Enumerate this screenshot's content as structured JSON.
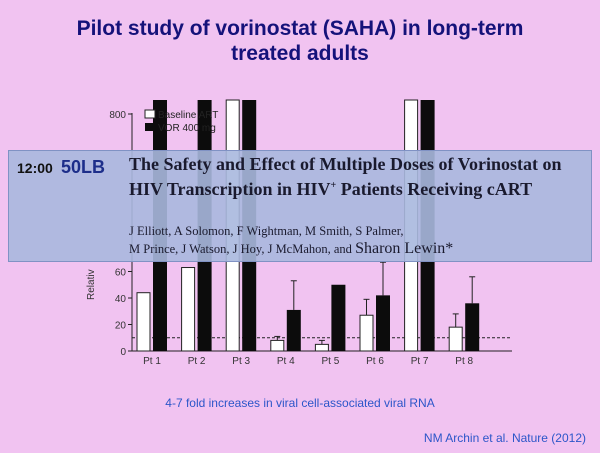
{
  "slide": {
    "title_line1": "Pilot study of vorinostat (SAHA) in long-term",
    "title_line2": "treated adults",
    "caption": "4-7 fold increases in viral cell-associated viral RNA",
    "citation": "NM Archin et al. Nature (2012)"
  },
  "banner": {
    "time": "12:00",
    "code": "50LB",
    "title_part1": "The Safety and Effect of Multiple Doses of Vorinostat on HIV Transcription in HIV",
    "title_sup": "+",
    "title_part2": " Patients Receiving cART",
    "authors_line1": "J Elliott, A Solomon, F Wightman, M Smith, S Palmer,",
    "authors_line2_a": "M Prince, J Watson, J Hoy, J McMahon, and ",
    "authors_line2_b": "Sharon Lewin*"
  },
  "colors": {
    "title": "#15127a",
    "caption": "#2c56c9",
    "background": "#f1c3f1",
    "banner": "#a8b8de"
  },
  "chart_data": {
    "type": "bar",
    "categories": [
      "Pt 1",
      "Pt 2",
      "Pt 3",
      "Pt 4",
      "Pt 5",
      "Pt 6",
      "Pt 7",
      "Pt 8"
    ],
    "series": [
      {
        "name": "Baseline ART",
        "values": [
          44,
          63,
          100,
          8,
          5,
          27,
          100,
          18
        ],
        "errors": [
          0,
          0,
          0,
          3,
          3,
          12,
          0,
          10
        ]
      },
      {
        "name": "VOR 400 mg",
        "values": [
          100,
          100,
          100,
          31,
          50,
          42,
          100,
          36
        ],
        "errors": [
          0,
          0,
          0,
          22,
          0,
          25,
          0,
          20
        ]
      }
    ],
    "ylabel": "Relativ",
    "ylim": [
      0,
      800
    ],
    "yticks_visible": [
      0,
      20,
      40,
      60,
      800
    ],
    "reference_line": 10
  }
}
